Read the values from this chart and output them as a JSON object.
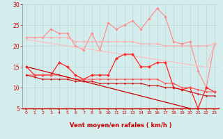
{
  "x": [
    0,
    1,
    2,
    3,
    4,
    5,
    6,
    7,
    8,
    9,
    10,
    11,
    12,
    13,
    14,
    15,
    16,
    17,
    18,
    19,
    20,
    21,
    22,
    23
  ],
  "series": [
    {
      "name": "rafales_high",
      "color": "#ff8888",
      "lw": 0.8,
      "marker": "D",
      "ms": 1.8,
      "y": [
        22,
        22,
        22,
        24,
        23,
        23,
        20,
        19,
        23,
        19,
        25.5,
        24,
        25,
        26,
        24,
        26.5,
        29,
        27,
        21,
        20.5,
        21,
        14,
        10,
        20.5
      ]
    },
    {
      "name": "trend_upper1",
      "color": "#ffaaaa",
      "lw": 0.8,
      "marker": "D",
      "ms": 1.5,
      "y": [
        22,
        22,
        22,
        22,
        22,
        22,
        21,
        21,
        21,
        21,
        21,
        21,
        21,
        21,
        20.5,
        20.5,
        20.5,
        20,
        20,
        20,
        20,
        20,
        20,
        20.5
      ]
    },
    {
      "name": "trend_upper2",
      "color": "#ffbbbb",
      "lw": 0.8,
      "marker": null,
      "ms": 0,
      "y": [
        21.5,
        21.2,
        20.9,
        20.6,
        20.3,
        20.0,
        19.7,
        19.4,
        19.1,
        18.8,
        18.5,
        18.2,
        17.9,
        17.6,
        17.3,
        17.0,
        16.7,
        16.4,
        16.1,
        15.8,
        15.5,
        15.2,
        14.9,
        20.5
      ]
    },
    {
      "name": "wind_avg",
      "color": "#ff2222",
      "lw": 0.9,
      "marker": "D",
      "ms": 2.0,
      "y": [
        15,
        13,
        13,
        13,
        16,
        15,
        13,
        12,
        13,
        13,
        13,
        17,
        18,
        18,
        15,
        15,
        16,
        16,
        10,
        9.5,
        10,
        5,
        10,
        9
      ]
    },
    {
      "name": "trend_mid1",
      "color": "#ff5555",
      "lw": 0.8,
      "marker": "D",
      "ms": 1.5,
      "y": [
        13,
        13,
        13,
        13,
        13,
        12.5,
        12,
        12,
        12,
        12,
        12,
        12,
        12,
        12,
        12,
        12,
        12,
        11,
        11,
        10,
        10,
        9.5,
        9,
        9
      ]
    },
    {
      "name": "trend_mid2",
      "color": "#cc1111",
      "lw": 0.8,
      "marker": "D",
      "ms": 1.2,
      "y": [
        13,
        12.5,
        12,
        12,
        12,
        12,
        11.5,
        11.5,
        11.5,
        11,
        11,
        11,
        11,
        11,
        11,
        10.5,
        10.5,
        10,
        10,
        9.5,
        9,
        8.5,
        8,
        8
      ]
    },
    {
      "name": "trend_line",
      "color": "#cc0000",
      "lw": 0.9,
      "marker": null,
      "ms": 0,
      "y": [
        15.0,
        14.5,
        14.0,
        13.5,
        13.0,
        12.5,
        12.0,
        11.5,
        11.0,
        10.5,
        10.0,
        9.5,
        9.0,
        8.5,
        8.0,
        7.5,
        7.0,
        6.5,
        6.0,
        5.5,
        5.0,
        4.5,
        4.0,
        3.5
      ]
    }
  ],
  "xlabel": "Vent moyen/en rafales ( km/h )",
  "ylim": [
    5,
    30
  ],
  "yticks": [
    5,
    10,
    15,
    20,
    25,
    30
  ],
  "xticks": [
    0,
    1,
    2,
    3,
    4,
    5,
    6,
    7,
    8,
    9,
    10,
    11,
    12,
    13,
    14,
    15,
    16,
    17,
    18,
    19,
    20,
    21,
    22,
    23
  ],
  "bg_color": "#d4ecec",
  "grid_color": "#b8d8d8",
  "tick_color": "#cc0000",
  "label_color": "#cc0000",
  "arrow_color": "#cc0000",
  "spine_color": "#888888"
}
